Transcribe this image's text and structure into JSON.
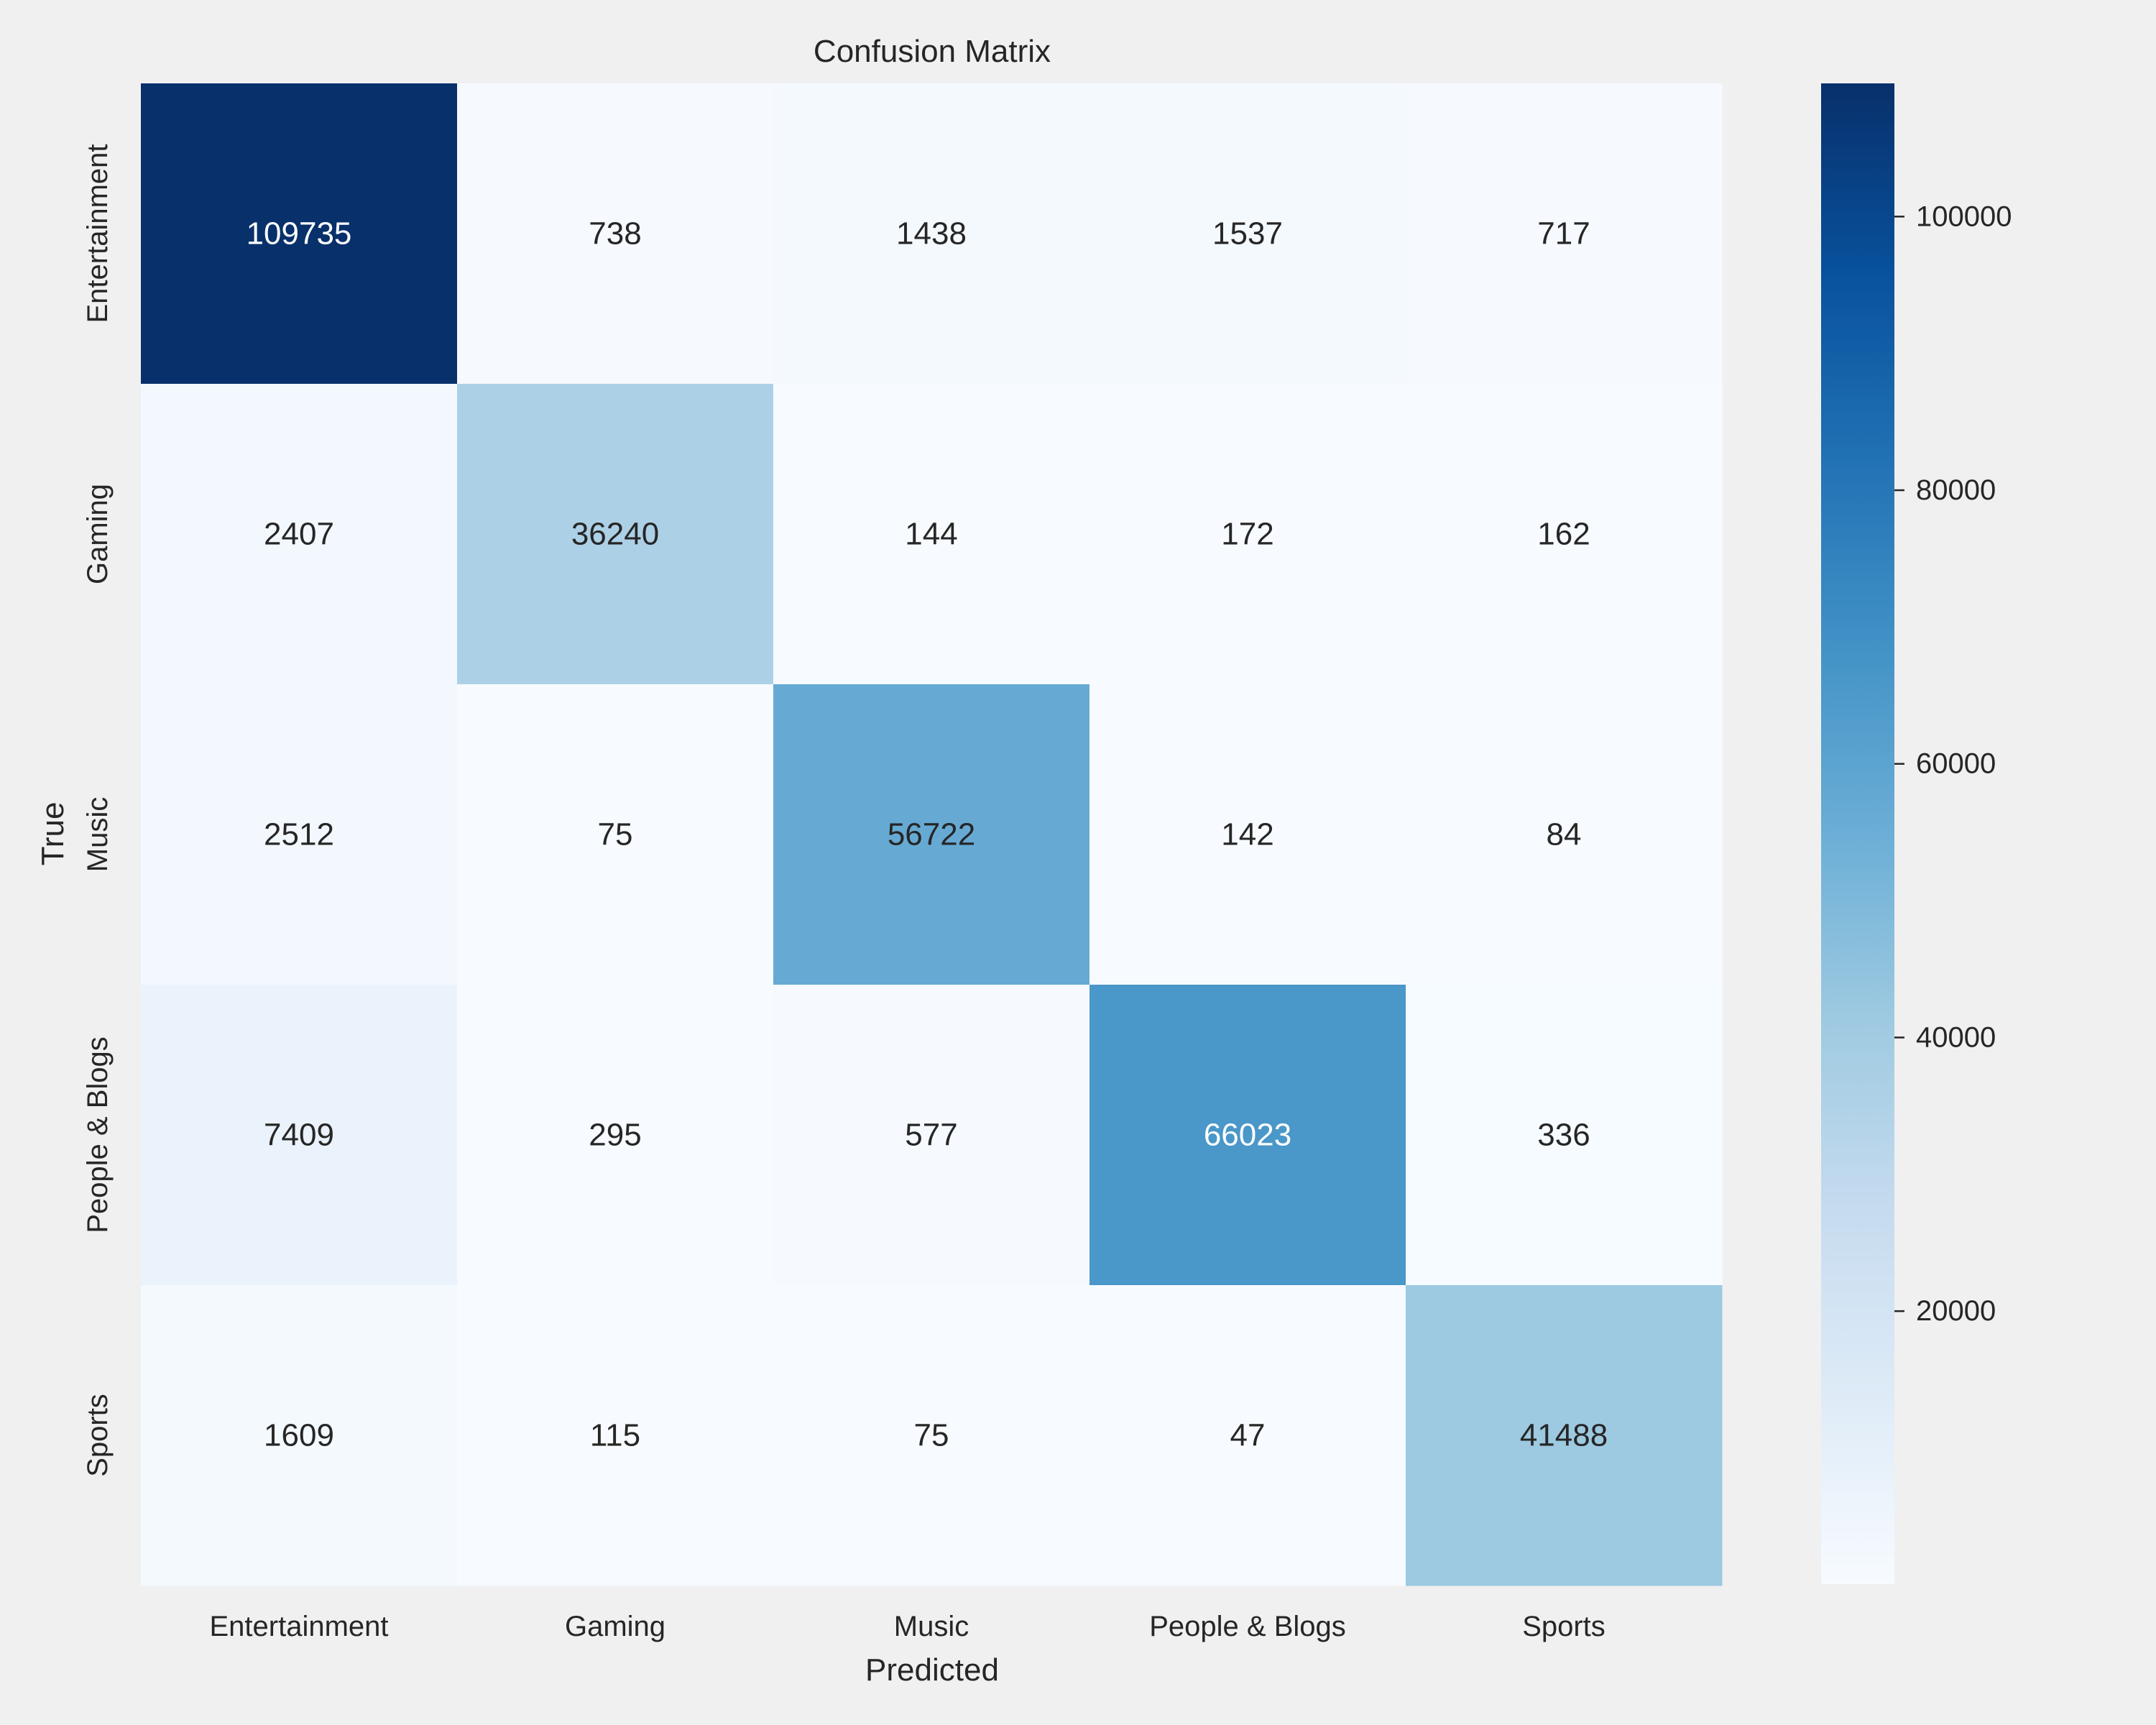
{
  "chart_data": {
    "type": "heatmap",
    "title": "Confusion Matrix",
    "xlabel": "Predicted",
    "ylabel": "True",
    "x_categories": [
      "Entertainment",
      "Gaming",
      "Music",
      "People & Blogs",
      "Sports"
    ],
    "y_categories": [
      "Entertainment",
      "Gaming",
      "Music",
      "People & Blogs",
      "Sports"
    ],
    "values": [
      [
        109735,
        738,
        1438,
        1537,
        717
      ],
      [
        2407,
        36240,
        144,
        172,
        162
      ],
      [
        2512,
        75,
        56722,
        142,
        84
      ],
      [
        7409,
        295,
        577,
        66023,
        336
      ],
      [
        1609,
        115,
        75,
        47,
        41488
      ]
    ],
    "colormap": "Blues",
    "colorbar": {
      "range": [
        47,
        109735
      ],
      "ticks": [
        20000,
        40000,
        60000,
        80000,
        100000
      ],
      "tick_labels": [
        "20000",
        "40000",
        "60000",
        "80000",
        "100000"
      ]
    },
    "colors": {
      "background": "#f0f0f0",
      "text_dark": "#262626",
      "text_light": "#ffffff"
    }
  }
}
